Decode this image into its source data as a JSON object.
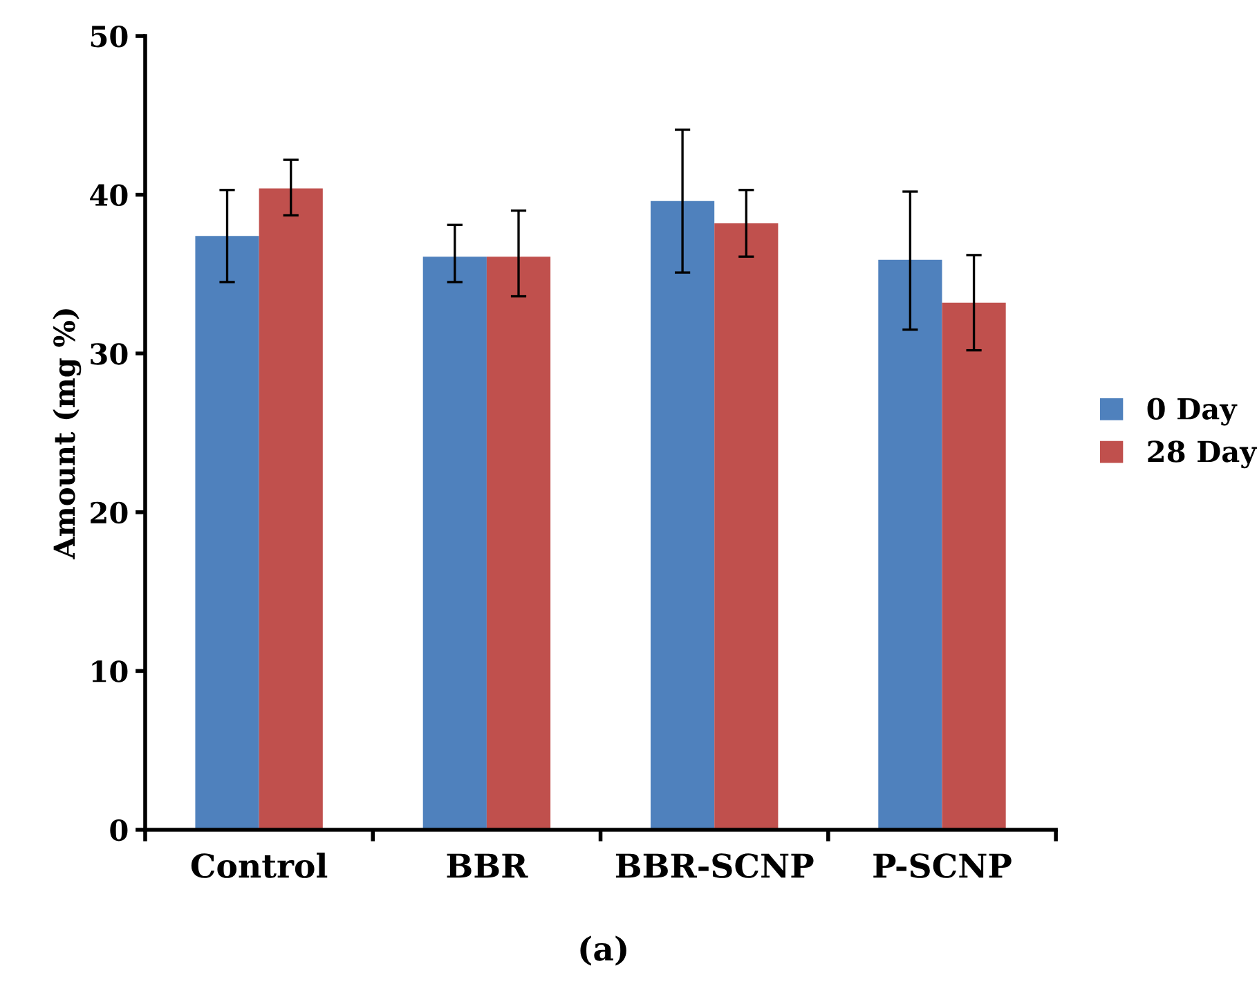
{
  "chart_data": {
    "type": "bar",
    "ylabel": "Amount (mg %)",
    "categories": [
      "Control",
      "BBR",
      "BBR-SCNP",
      "P-SCNP"
    ],
    "series": [
      {
        "name": "0 Day",
        "color": "#4f81bd",
        "values": [
          37.4,
          36.1,
          39.6,
          35.9
        ],
        "errors": [
          [
            34.5,
            40.3
          ],
          [
            34.5,
            38.1
          ],
          [
            35.1,
            44.1
          ],
          [
            31.5,
            40.2
          ]
        ]
      },
      {
        "name": "28 Day",
        "color": "#c0504d",
        "values": [
          40.4,
          36.1,
          38.2,
          33.2
        ],
        "errors": [
          [
            38.7,
            42.2
          ],
          [
            33.6,
            39.0
          ],
          [
            36.1,
            40.3
          ],
          [
            30.2,
            36.2
          ]
        ]
      }
    ],
    "ylim": [
      0,
      50
    ],
    "yticks": [
      0,
      10,
      20,
      30,
      40,
      50
    ],
    "grid": false,
    "legend": "right",
    "annotations": [
      "(a)"
    ]
  }
}
